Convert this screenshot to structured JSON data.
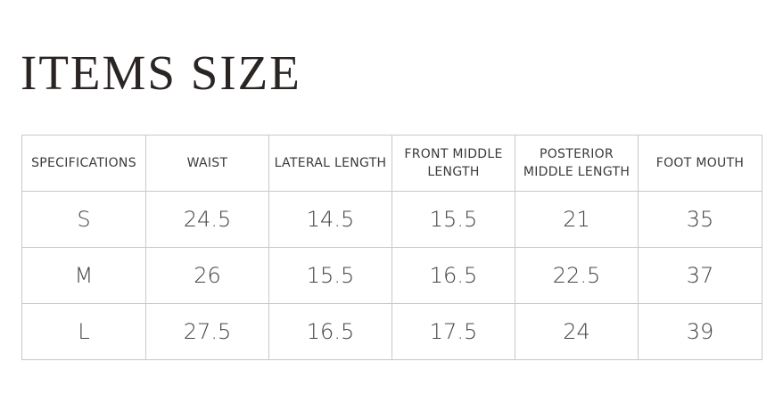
{
  "title": "ITEMS SIZE",
  "table": {
    "headers": [
      "SPECIFICATIONS",
      "WAIST",
      "LATERAL LENGTH",
      "FRONT MIDDLE LENGTH",
      "POSTERIOR MIDDLE LENGTH",
      "FOOT MOUTH"
    ],
    "rows": [
      [
        "S",
        "24.5",
        "14.5",
        "15.5",
        "21",
        "35"
      ],
      [
        "M",
        "26",
        "15.5",
        "16.5",
        "22.5",
        "37"
      ],
      [
        "L",
        "27.5",
        "16.5",
        "17.5",
        "24",
        "39"
      ]
    ]
  }
}
